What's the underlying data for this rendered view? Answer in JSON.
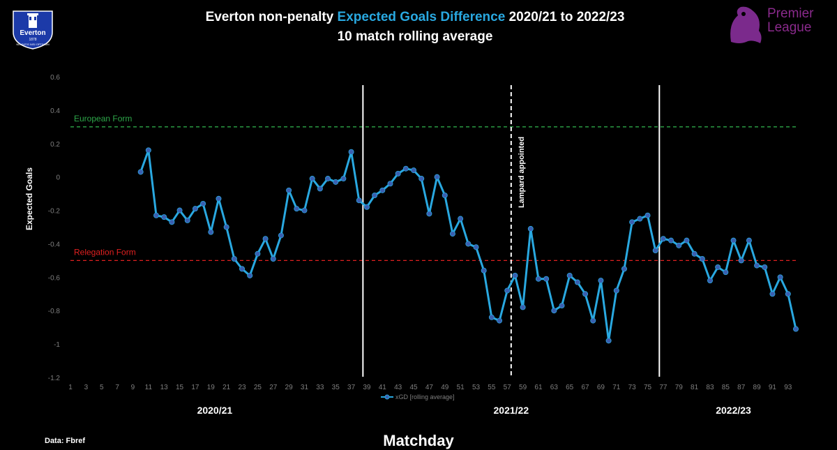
{
  "header": {
    "title_prefix": "Everton non-penalty ",
    "title_highlight": "Expected Goals Difference",
    "title_suffix": " 2020/21 to 2022/23",
    "subtitle": "10 match rolling average",
    "highlight_color": "#29a8e0"
  },
  "logos": {
    "club_name": "Everton",
    "club_year": "1878",
    "club_motto": "NIL SATIS NISI OPTIMUM",
    "league_line1": "Premier",
    "league_line2": "League"
  },
  "footer": {
    "source": "Data: Fbref",
    "x_title": "Matchday"
  },
  "chart_data": {
    "type": "line",
    "ylabel": "Expected Goals",
    "xlabel": "Matchday",
    "ylim": [
      -1.2,
      0.6
    ],
    "yticks": [
      0.6,
      0.4,
      0.2,
      0,
      -0.2,
      -0.4,
      -0.6,
      -0.8,
      -1,
      -1.2
    ],
    "xlim": [
      1,
      94
    ],
    "xticks": [
      1,
      3,
      5,
      7,
      9,
      11,
      13,
      15,
      17,
      19,
      21,
      23,
      25,
      27,
      29,
      31,
      33,
      35,
      37,
      39,
      41,
      43,
      45,
      47,
      49,
      51,
      53,
      55,
      57,
      59,
      61,
      63,
      65,
      67,
      69,
      71,
      73,
      75,
      77,
      79,
      81,
      83,
      85,
      87,
      89,
      91,
      93
    ],
    "grid": false,
    "legend": "bottom-center",
    "series": [
      {
        "name": "xGD [rolling average]",
        "color": "#29a8e0",
        "marker_color": "#3a5fb0",
        "x": [
          10,
          11,
          12,
          13,
          14,
          15,
          16,
          17,
          18,
          19,
          20,
          21,
          22,
          23,
          24,
          25,
          26,
          27,
          28,
          29,
          30,
          31,
          32,
          33,
          34,
          35,
          36,
          37,
          38,
          39,
          40,
          41,
          42,
          43,
          44,
          45,
          46,
          47,
          48,
          49,
          50,
          51,
          52,
          53,
          54,
          55,
          56,
          57,
          58,
          59,
          60,
          61,
          62,
          63,
          64,
          65,
          66,
          67,
          68,
          69,
          70,
          71,
          72,
          73,
          74,
          75,
          76,
          77,
          78,
          79,
          80,
          81,
          82,
          83,
          84,
          85,
          86,
          87,
          88,
          89,
          90,
          91,
          92,
          93,
          94
        ],
        "y": [
          0.03,
          0.16,
          -0.23,
          -0.24,
          -0.27,
          -0.2,
          -0.26,
          -0.19,
          -0.16,
          -0.33,
          -0.13,
          -0.3,
          -0.49,
          -0.55,
          -0.59,
          -0.46,
          -0.37,
          -0.49,
          -0.35,
          -0.08,
          -0.19,
          -0.2,
          -0.01,
          -0.07,
          -0.01,
          -0.03,
          -0.01,
          0.15,
          -0.14,
          -0.18,
          -0.11,
          -0.08,
          -0.04,
          0.02,
          0.05,
          0.04,
          -0.01,
          -0.22,
          0.0,
          -0.11,
          -0.34,
          -0.25,
          -0.4,
          -0.42,
          -0.56,
          -0.84,
          -0.86,
          -0.68,
          -0.59,
          -0.78,
          -0.31,
          -0.61,
          -0.61,
          -0.8,
          -0.77,
          -0.59,
          -0.63,
          -0.7,
          -0.86,
          -0.62,
          -0.98,
          -0.68,
          -0.55,
          -0.27,
          -0.25,
          -0.23,
          -0.44,
          -0.37,
          -0.38,
          -0.41,
          -0.38,
          -0.46,
          -0.49,
          -0.62,
          -0.54,
          -0.57,
          -0.38,
          -0.5,
          -0.38,
          -0.53,
          -0.54,
          -0.7,
          -0.6,
          -0.7,
          -0.91
        ]
      }
    ],
    "reference_lines": [
      {
        "label": "European Form",
        "y": 0.3,
        "color": "#2ea84a"
      },
      {
        "label": "Relegation Form",
        "y": -0.5,
        "color": "#e02020"
      }
    ],
    "season_dividers": [
      {
        "x": 38.5,
        "style": "solid"
      },
      {
        "x": 76.5,
        "style": "solid"
      }
    ],
    "events": [
      {
        "x": 57.5,
        "label": "Lampard appointed",
        "style": "dashed"
      }
    ],
    "seasons": [
      {
        "label": "2020/21",
        "center": 19.5
      },
      {
        "label": "2021/22",
        "center": 57.5
      },
      {
        "label": "2022/23",
        "center": 86
      }
    ]
  }
}
